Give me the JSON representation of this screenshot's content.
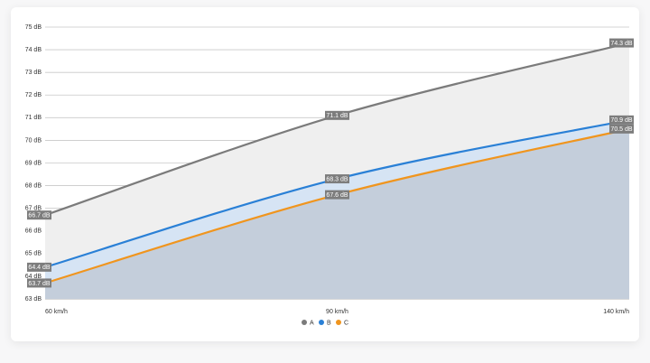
{
  "chart_data": {
    "type": "area",
    "categories": [
      "60 km/h",
      "90 km/h",
      "140 km/h"
    ],
    "ylim": [
      63,
      75
    ],
    "yticks": [
      {
        "value": 63,
        "label": "63 dB"
      },
      {
        "value": 64,
        "label": "64 dB"
      },
      {
        "value": 65,
        "label": "65 dB"
      },
      {
        "value": 66,
        "label": "66 dB"
      },
      {
        "value": 67,
        "label": "67 dB"
      },
      {
        "value": 68,
        "label": "68 dB"
      },
      {
        "value": 69,
        "label": "69 dB"
      },
      {
        "value": 70,
        "label": "70 dB"
      },
      {
        "value": 71,
        "label": "71 dB"
      },
      {
        "value": 72,
        "label": "72 dB"
      },
      {
        "value": 73,
        "label": "73 dB"
      },
      {
        "value": 74,
        "label": "74 dB"
      },
      {
        "value": 75,
        "label": "75 dB"
      }
    ],
    "grid": true,
    "legend": "bottom",
    "series": [
      {
        "name": "A",
        "color": "#7b7b7b",
        "fill": "#efefef",
        "values": [
          66.7,
          71.1,
          74.3
        ],
        "value_labels": [
          "66.7 dB",
          "71.1 dB",
          "74.3 dB"
        ]
      },
      {
        "name": "B",
        "color": "#2a80d6",
        "fill": "#d6e4f4",
        "values": [
          64.4,
          68.3,
          70.9
        ],
        "value_labels": [
          "64.4 dB",
          "68.3 dB",
          "70.9 dB"
        ]
      },
      {
        "name": "C",
        "color": "#f0951e",
        "fill": "#c4cedb",
        "values": [
          63.7,
          67.6,
          70.5
        ],
        "value_labels": [
          "63.7 dB",
          "67.6 dB",
          "70.5 dB"
        ]
      }
    ]
  }
}
